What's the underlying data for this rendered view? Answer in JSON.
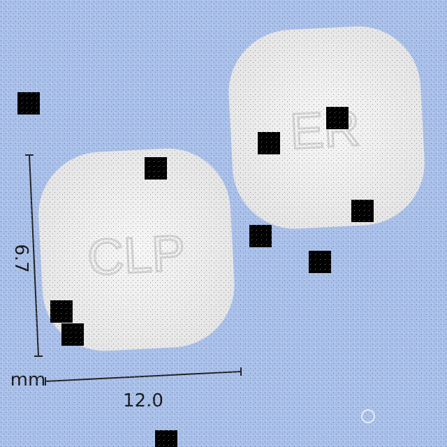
{
  "measurements": {
    "height": "6.7",
    "width": "12.0",
    "unit": "mm"
  },
  "imprints": [
    "CLP",
    "ER"
  ]
}
